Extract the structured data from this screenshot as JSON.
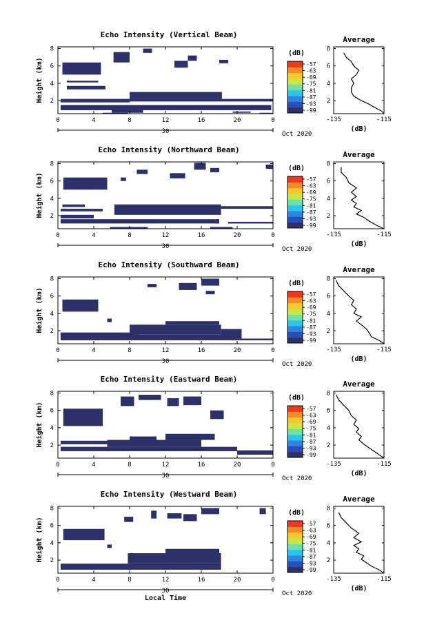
{
  "chart_data": [
    {
      "type": "heatmap",
      "title": "Echo Intensity (Vertical Beam)",
      "ylabel": "Height (km)",
      "xticks": [
        "0",
        "4",
        "8",
        "12",
        "16",
        "20",
        "0"
      ],
      "date_label": "30",
      "month_label": "Oct 2020",
      "yticks": [
        "2",
        "4",
        "6",
        "8"
      ],
      "xlim": [
        0,
        24
      ],
      "ylim": [
        0.5,
        8.2
      ],
      "colorbar": {
        "unit": "(dB)",
        "ticks": [
          "-57",
          "-63",
          "-69",
          "-75",
          "-81",
          "-87",
          "-93",
          "-99"
        ]
      },
      "echo_regions": [
        [
          5,
          7.8,
          0.3,
          0.6
        ],
        [
          6,
          9.5,
          0.6,
          0.9
        ],
        [
          19.5,
          21.5,
          0.6,
          0.75
        ],
        [
          22.5,
          24,
          0.5,
          0.6
        ],
        [
          0.3,
          23.8,
          0.9,
          1.5
        ],
        [
          0.3,
          8,
          1.8,
          2.2
        ],
        [
          7.8,
          24,
          1.9,
          2.2
        ],
        [
          8,
          18.3,
          2.2,
          3.0
        ],
        [
          1,
          5.3,
          3.3,
          3.7
        ],
        [
          1,
          4.5,
          4.1,
          4.3
        ],
        [
          0.5,
          4.8,
          5.0,
          6.4
        ],
        [
          6.2,
          8,
          6.4,
          7.6
        ],
        [
          9.5,
          10.5,
          7.5,
          8.0
        ],
        [
          13,
          14.5,
          5.8,
          6.6
        ],
        [
          14.5,
          15.5,
          6.6,
          7.2
        ],
        [
          18,
          19,
          6.3,
          6.7
        ]
      ],
      "profile": {
        "title": "Average",
        "xlabel": "(dB)",
        "xticks": [
          "-135",
          "-115"
        ],
        "yticks": [
          "2",
          "4",
          "6",
          "8"
        ],
        "xlim": [
          -135,
          -115
        ],
        "ylim": [
          0.5,
          8.2
        ],
        "x": [
          -115,
          -116,
          -118,
          -121,
          -124,
          -127,
          -128,
          -128,
          -127,
          -128,
          -126,
          -125,
          -127,
          -128,
          -130,
          -131
        ],
        "y": [
          0.5,
          0.8,
          1.1,
          1.6,
          2.0,
          2.5,
          3.0,
          3.5,
          4.0,
          4.5,
          5.0,
          5.5,
          6.0,
          6.5,
          7.0,
          7.5
        ]
      }
    },
    {
      "type": "heatmap",
      "title": "Echo Intensity (Northward Beam)",
      "ylabel": "Height (km)",
      "xticks": [
        "0",
        "4",
        "8",
        "12",
        "16",
        "20",
        "0"
      ],
      "date_label": "30",
      "month_label": "Oct 2020",
      "yticks": [
        "2",
        "4",
        "6",
        "8"
      ],
      "xlim": [
        0,
        24
      ],
      "ylim": [
        0.5,
        8.2
      ],
      "colorbar": {
        "unit": "(dB)",
        "ticks": [
          "-57",
          "-63",
          "-69",
          "-75",
          "-81",
          "-87",
          "-93",
          "-99"
        ]
      },
      "echo_regions": [
        [
          5.8,
          10,
          0.3,
          0.7
        ],
        [
          17,
          19.5,
          0.5,
          0.7
        ],
        [
          0.3,
          18,
          1.1,
          1.6
        ],
        [
          19,
          24,
          1.1,
          1.3
        ],
        [
          0.3,
          4,
          1.7,
          2.1
        ],
        [
          0.3,
          5,
          2.5,
          2.8
        ],
        [
          6.3,
          18.2,
          2.1,
          3.3
        ],
        [
          18.2,
          24,
          2.8,
          3.1
        ],
        [
          0.5,
          3,
          3.0,
          3.3
        ],
        [
          0.6,
          5.5,
          5.0,
          6.4
        ],
        [
          7,
          7.6,
          6.0,
          6.4
        ],
        [
          8.8,
          10,
          6.8,
          7.3
        ],
        [
          12.5,
          14.2,
          6.3,
          6.9
        ],
        [
          15.2,
          16.5,
          7.3,
          8.1
        ],
        [
          17,
          18,
          7.0,
          7.5
        ],
        [
          23.2,
          24,
          7.4,
          7.9
        ]
      ],
      "profile": {
        "title": "Average",
        "xlabel": "(dB)",
        "xticks": [
          "-135",
          "-115"
        ],
        "yticks": [
          "2",
          "4",
          "6",
          "8"
        ],
        "xlim": [
          -135,
          -115
        ],
        "ylim": [
          0.5,
          8.2
        ],
        "x": [
          -115,
          -118,
          -121,
          -123,
          -126,
          -124,
          -127,
          -126,
          -128,
          -126,
          -128,
          -126,
          -129,
          -130,
          -132,
          -132
        ],
        "y": [
          0.5,
          0.9,
          1.4,
          1.8,
          2.2,
          2.6,
          3.0,
          3.4,
          3.8,
          4.2,
          4.7,
          5.2,
          5.8,
          6.4,
          7.0,
          7.6
        ]
      }
    },
    {
      "type": "heatmap",
      "title": "Echo Intensity (Southward Beam)",
      "ylabel": "Height (km)",
      "xticks": [
        "0",
        "4",
        "8",
        "12",
        "16",
        "20",
        "0"
      ],
      "date_label": "30",
      "month_label": "Oct 2020",
      "yticks": [
        "2",
        "4",
        "6",
        "8"
      ],
      "xlim": [
        0,
        24
      ],
      "ylim": [
        0.5,
        8.2
      ],
      "colorbar": {
        "unit": "(dB)",
        "ticks": [
          "-57",
          "-63",
          "-69",
          "-75",
          "-81",
          "-87",
          "-93",
          "-99"
        ]
      },
      "echo_regions": [
        [
          0.3,
          18.5,
          0.9,
          1.6
        ],
        [
          0.3,
          9,
          1.3,
          1.8
        ],
        [
          8,
          18.2,
          1.6,
          2.7
        ],
        [
          12,
          18,
          2.7,
          3.1
        ],
        [
          18.2,
          20.5,
          0.9,
          2.2
        ],
        [
          20.5,
          24,
          0.9,
          1.1
        ],
        [
          0.5,
          4.5,
          4.2,
          5.6
        ],
        [
          5.5,
          6,
          3.0,
          3.4
        ],
        [
          10,
          11,
          7.0,
          7.4
        ],
        [
          13.5,
          15.5,
          6.7,
          7.5
        ],
        [
          16,
          18,
          7.2,
          8.0
        ],
        [
          16.5,
          17.5,
          6.2,
          6.6
        ]
      ],
      "profile": {
        "title": "Average",
        "xlabel": "(dB)",
        "xticks": [
          "-135",
          "-115"
        ],
        "yticks": [
          "2",
          "4",
          "6",
          "8"
        ],
        "xlim": [
          -135,
          -115
        ],
        "ylim": [
          0.5,
          8.2
        ],
        "x": [
          -115,
          -117,
          -120,
          -121,
          -122,
          -124,
          -126,
          -124,
          -127,
          -126,
          -128,
          -127,
          -129,
          -131,
          -133,
          -134
        ],
        "y": [
          0.5,
          0.9,
          1.3,
          1.8,
          2.2,
          2.7,
          3.1,
          3.6,
          4.0,
          4.5,
          5.0,
          5.5,
          6.0,
          6.6,
          7.2,
          7.8
        ]
      }
    },
    {
      "type": "heatmap",
      "title": "Echo Intensity (Eastward Beam)",
      "ylabel": "Height (km)",
      "xticks": [
        "0",
        "4",
        "8",
        "12",
        "16",
        "20",
        "0"
      ],
      "date_label": "30",
      "month_label": "Oct 2020",
      "yticks": [
        "2",
        "4",
        "6",
        "8"
      ],
      "xlim": [
        0,
        24
      ],
      "ylim": [
        0.5,
        8.2
      ],
      "colorbar": {
        "unit": "(dB)",
        "ticks": [
          "-57",
          "-63",
          "-69",
          "-75",
          "-81",
          "-87",
          "-93",
          "-99"
        ]
      },
      "echo_regions": [
        [
          0.3,
          20,
          1.3,
          1.8
        ],
        [
          20,
          24,
          0.9,
          1.4
        ],
        [
          0.3,
          6,
          2.1,
          2.5
        ],
        [
          5.5,
          16,
          1.8,
          2.6
        ],
        [
          12,
          17.5,
          2.6,
          3.3
        ],
        [
          8,
          11,
          2.5,
          3.0
        ],
        [
          0.6,
          5,
          4.2,
          6.2
        ],
        [
          7,
          8.5,
          6.5,
          7.6
        ],
        [
          9,
          11.5,
          7.2,
          7.8
        ],
        [
          12.2,
          13.5,
          6.5,
          7.4
        ],
        [
          14,
          16,
          6.6,
          7.6
        ],
        [
          17,
          18.5,
          5.0,
          6.0
        ]
      ],
      "profile": {
        "title": "Average",
        "xlabel": "(dB)",
        "xticks": [
          "-135",
          "-115"
        ],
        "yticks": [
          "2",
          "4",
          "6",
          "8"
        ],
        "xlim": [
          -135,
          -115
        ],
        "ylim": [
          0.5,
          8.2
        ],
        "x": [
          -115,
          -117,
          -119,
          -121,
          -123,
          -125,
          -124,
          -126,
          -125,
          -127,
          -126,
          -128,
          -129,
          -131,
          -133,
          -134
        ],
        "y": [
          0.5,
          0.9,
          1.3,
          1.7,
          2.1,
          2.6,
          3.0,
          3.5,
          3.9,
          4.4,
          4.9,
          5.4,
          6.0,
          6.6,
          7.2,
          7.8
        ]
      }
    },
    {
      "type": "heatmap",
      "title": "Echo Intensity (Westward Beam)",
      "ylabel": "Height (km)",
      "xticks": [
        "0",
        "4",
        "8",
        "12",
        "16",
        "20",
        "0"
      ],
      "date_label": "30",
      "month_label": "Oct 2020",
      "xlabel": "Local Time",
      "yticks": [
        "2",
        "4",
        "6",
        "8"
      ],
      "xlim": [
        0,
        24
      ],
      "ylim": [
        0.5,
        8.2
      ],
      "colorbar": {
        "unit": "(dB)",
        "ticks": [
          "-57",
          "-63",
          "-69",
          "-75",
          "-81",
          "-87",
          "-93",
          "-99"
        ]
      },
      "echo_regions": [
        [
          0.3,
          18.2,
          0.9,
          1.6
        ],
        [
          0.5,
          8,
          1.0,
          1.3
        ],
        [
          7.8,
          18.2,
          1.6,
          2.8
        ],
        [
          12,
          18,
          2.8,
          3.3
        ],
        [
          0.6,
          5.2,
          4.3,
          5.6
        ],
        [
          5.5,
          6,
          3.4,
          3.8
        ],
        [
          7.4,
          8.4,
          6.4,
          7.0
        ],
        [
          10.4,
          11,
          6.8,
          7.7
        ],
        [
          12.2,
          13.8,
          6.8,
          7.4
        ],
        [
          14,
          15.5,
          6.5,
          7.3
        ],
        [
          16,
          18,
          7.3,
          8.0
        ],
        [
          22.5,
          23.2,
          7.3,
          8.0
        ]
      ],
      "profile": {
        "title": "Average",
        "xlabel": "(dB)",
        "xticks": [
          "-135",
          "-115"
        ],
        "yticks": [
          "2",
          "4",
          "6",
          "8"
        ],
        "xlim": [
          -135,
          -115
        ],
        "ylim": [
          0.5,
          8.2
        ],
        "x": [
          -115,
          -117,
          -120,
          -122,
          -124,
          -123,
          -126,
          -125,
          -127,
          -124,
          -127,
          -125,
          -128,
          -130,
          -132,
          -133
        ],
        "y": [
          0.5,
          0.9,
          1.3,
          1.7,
          2.1,
          2.5,
          2.9,
          3.3,
          3.7,
          4.1,
          4.6,
          5.1,
          5.7,
          6.3,
          6.9,
          7.5
        ]
      }
    }
  ],
  "colors": {
    "echo": "#2e3168",
    "scale": [
      "#2e3168",
      "#2a4fb8",
      "#2e86e0",
      "#2ec4ea",
      "#6ee0a8",
      "#c8e648",
      "#f6c830",
      "#f68a2a",
      "#ea3a20"
    ]
  }
}
